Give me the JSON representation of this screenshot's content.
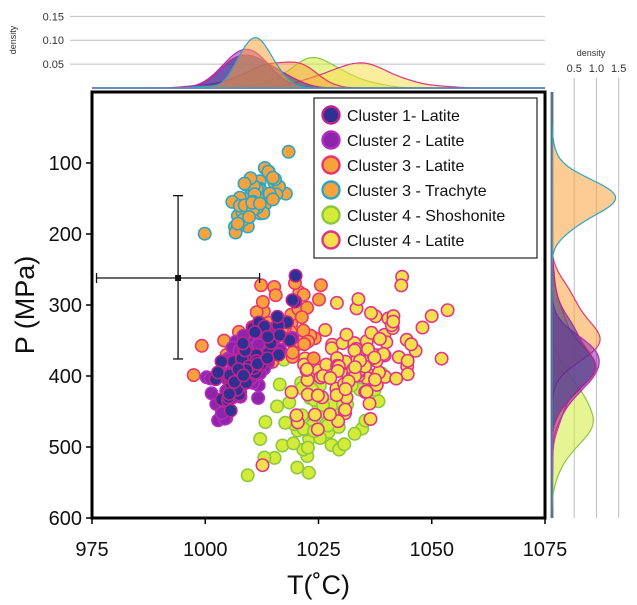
{
  "chart_data": {
    "type": "scatter",
    "xlabel": "T(˚C)",
    "ylabel": "P (MPa)",
    "xlim": [
      975,
      1075
    ],
    "ylim": [
      600,
      0
    ],
    "x_ticks": [
      "975",
      "1000",
      "1025",
      "1050",
      "1075"
    ],
    "y_ticks": [
      "100",
      "200",
      "300",
      "400",
      "500",
      "600"
    ],
    "legend_position": "top-right",
    "error_bar": {
      "x": 994,
      "y": 262,
      "x_range": [
        976,
        1012
      ],
      "y_range": [
        146,
        376
      ]
    },
    "series": [
      {
        "name": "Cluster 1- Latite",
        "fill": "#2e3192",
        "stroke": "#c0248c"
      },
      {
        "name": "Cluster 2 - Latite",
        "fill": "#8e24aa",
        "stroke": "#b02ec0"
      },
      {
        "name": "Cluster 3 - Latite",
        "fill": "#f9a23c",
        "stroke": "#e8356d"
      },
      {
        "name": "Cluster 3 - Trachyte",
        "fill": "#f9a23c",
        "stroke": "#2aa6c9"
      },
      {
        "name": "Cluster 4 - Shoshonite",
        "fill": "#d4eb3a",
        "stroke": "#8bc83f"
      },
      {
        "name": "Cluster 4 - Latite",
        "fill": "#f5df4d",
        "stroke": "#e0338a"
      }
    ],
    "top_density": {
      "ylabel": "density",
      "y_ticks": [
        "0.05",
        "0.10",
        "0.15"
      ],
      "ylim": [
        0,
        0.18
      ]
    },
    "right_density": {
      "xlabel": "density",
      "x_ticks": [
        "0.5",
        "1.0",
        "1.5"
      ],
      "xlim": [
        0,
        1.8
      ]
    }
  }
}
